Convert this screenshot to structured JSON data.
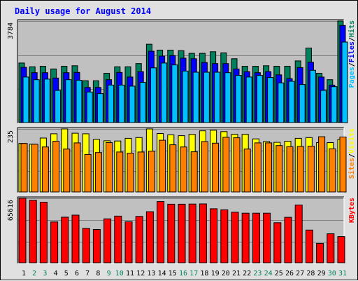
{
  "colors": {
    "background": "#E0E0E0",
    "plot_background": "#C0C0C0",
    "title": "#0000FF",
    "hits": "#00805C",
    "files": "#0000FF",
    "pages": "#00C0FF",
    "visits": "#FFFF00",
    "sites": "#FF8000",
    "kbytes": "#FF0000",
    "weekday_label": "#000000",
    "weekend_label": "#00805C"
  },
  "chart_data": {
    "type": "bar",
    "title": "Daily usage for August 2014",
    "categories": [
      "1",
      "2",
      "3",
      "4",
      "5",
      "6",
      "7",
      "8",
      "9",
      "10",
      "11",
      "12",
      "13",
      "14",
      "15",
      "16",
      "17",
      "18",
      "19",
      "20",
      "21",
      "22",
      "23",
      "24",
      "25",
      "26",
      "27",
      "28",
      "29",
      "30",
      "31"
    ],
    "weekend_days": [
      "2",
      "3",
      "9",
      "10",
      "16",
      "17",
      "23",
      "24",
      "30",
      "31"
    ],
    "panels": [
      {
        "name": "hits-files-pages",
        "ymax": 3784,
        "ymax_label": "3784",
        "legend": [
          "Pages",
          "/",
          "Files",
          "/",
          "Hits"
        ],
        "series": [
          {
            "name": "Hits",
            "values": [
              2220,
              2080,
              2100,
              2000,
              2100,
              2120,
              1560,
              1560,
              1840,
              2080,
              2080,
              2200,
              2920,
              2700,
              2700,
              2680,
              2580,
              2580,
              2640,
              2600,
              2380,
              2100,
              2100,
              2120,
              2100,
              2100,
              2300,
              2780,
              1840,
              1600,
              3790
            ]
          },
          {
            "name": "Files",
            "values": [
              2060,
              1860,
              1860,
              1660,
              1860,
              1870,
              1310,
              1310,
              1600,
              1870,
              1700,
              1900,
              2660,
              2480,
              2500,
              2400,
              2380,
              2240,
              2200,
              2200,
              2000,
              1900,
              1860,
              1900,
              1780,
              1640,
              2050,
              2250,
              1700,
              1400,
              3620
            ]
          },
          {
            "name": "Pages",
            "values": [
              1700,
              1600,
              1620,
              1200,
              1600,
              1580,
              1140,
              1080,
              1400,
              1400,
              1360,
              1500,
              2040,
              2220,
              2150,
              1920,
              1880,
              1880,
              1880,
              1860,
              1760,
              1700,
              1760,
              1680,
              1480,
              1540,
              1420,
              1950,
              1200,
              1340,
              3000
            ]
          }
        ]
      },
      {
        "name": "visits-sites",
        "ymax": 235,
        "ymax_label": "235",
        "legend": [
          "Sites",
          "/",
          "Visits"
        ],
        "series": [
          {
            "name": "Visits",
            "values": [
              181,
              178,
              201,
              217,
              235,
              219,
              217,
              196,
              191,
              190,
              200,
              203,
              236,
              218,
              213,
              210,
              215,
              228,
              230,
              225,
              215,
              215,
              198,
              188,
              185,
              189,
              200,
              203,
              184,
              184,
              196
            ]
          },
          {
            "name": "Sites",
            "values": [
              181,
              178,
              168,
              189,
              160,
              183,
              140,
              147,
              184,
              149,
              145,
              149,
              152,
              193,
              176,
              168,
              150,
              188,
              182,
              204,
              202,
              160,
              183,
              183,
              173,
              169,
              170,
              171,
              206,
              161,
              205
            ]
          }
        ]
      },
      {
        "name": "kbytes",
        "ymax": 65616,
        "ymax_label": "65616",
        "legend": [
          "KBytes"
        ],
        "series": [
          {
            "name": "KBytes",
            "values": [
              65616,
              63600,
              61700,
              41600,
              46400,
              48500,
              35000,
              33900,
              44700,
              47500,
              41700,
              47200,
              52000,
              62300,
              59600,
              59600,
              59800,
              59900,
              55000,
              53900,
              51500,
              50500,
              50500,
              50500,
              40800,
              46300,
              58800,
              33300,
              19700,
              29500,
              26700
            ]
          }
        ]
      }
    ]
  }
}
